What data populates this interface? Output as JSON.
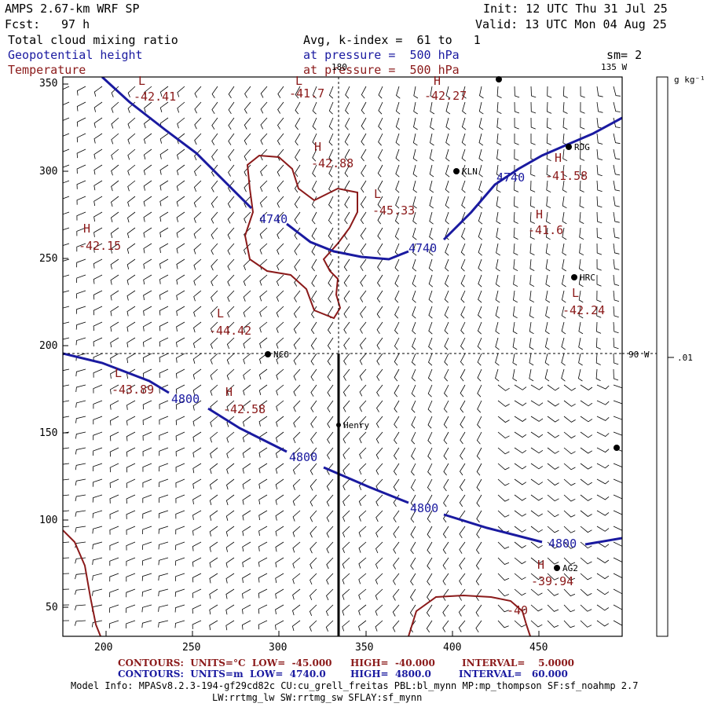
{
  "header": {
    "model": "AMPS 2.67-km WRF SP",
    "fcst_label": "Fcst:",
    "fcst_value": "97 h",
    "init": "Init: 12 UTC Thu 31 Jul 25",
    "valid": "Valid: 13 UTC Mon 04 Aug 25",
    "field1": "Total cloud mixing ratio",
    "field2": "Geopotential height",
    "field3": "Temperature",
    "avg": "Avg, k-index =  61 to   1",
    "pressure1": "at pressure =  500 hPa",
    "pressure2": "at pressure =  500 hPa",
    "smoothing": "sm= 2"
  },
  "colors": {
    "height": "#1a1aa0",
    "temperature": "#8b1a1a",
    "stations": "#000000"
  },
  "axes": {
    "x_ticks": [
      "200",
      "250",
      "300",
      "350",
      "400",
      "450"
    ],
    "y_ticks": [
      "350",
      "300",
      "250",
      "200",
      "150",
      "100",
      "50"
    ],
    "lon_labels": [
      "180",
      "135 W",
      "90 W"
    ]
  },
  "colorbar": {
    "unit": "g kg⁻¹",
    "tick": ".01"
  },
  "stations": [
    {
      "name": "KLN"
    },
    {
      "name": "RDG"
    },
    {
      "name": "HRC"
    },
    {
      "name": "NCO"
    },
    {
      "name": "Henry"
    },
    {
      "name": "AG2"
    }
  ],
  "height_labels": [
    "4740",
    "4740",
    "4740",
    "4800",
    "4800",
    "4800",
    "4800"
  ],
  "temp_extrema": [
    {
      "type": "L",
      "value": "-42.41"
    },
    {
      "type": "L",
      "value": "-41.7"
    },
    {
      "type": "H",
      "value": "-42.27"
    },
    {
      "type": "H",
      "value": "-42.88"
    },
    {
      "type": "L",
      "value": "-45.33"
    },
    {
      "type": "H",
      "value": "-41.58"
    },
    {
      "type": "H",
      "value": "-41.6"
    },
    {
      "type": "H",
      "value": "-42.15"
    },
    {
      "type": "L",
      "value": "-42.24"
    },
    {
      "type": "L",
      "value": "-44.42"
    },
    {
      "type": "L",
      "value": "-43.89"
    },
    {
      "type": "H",
      "value": "-42.58"
    },
    {
      "type": "H",
      "value": "-39.94"
    },
    {
      "type": "",
      "value": "-40"
    }
  ],
  "footer": {
    "line1_left": "CONTOURS:  UNITS=°C  LOW=  -45.000",
    "line1_high": "HIGH=  -40.000",
    "line1_int": "INTERVAL=    5.0000",
    "line2_left": "CONTOURS:  UNITS=m  LOW=  4740.0",
    "line2_high": "HIGH=  4800.0",
    "line2_int": "INTERVAL=   60.000",
    "model_info": "Model Info: MPASv8.2.3-194-gf29cd82c CU:cu_grell_freitas PBL:bl_mynn MP:mp_thompson SF:sf_noahmp 2.7",
    "model_info2": "LW:rrtmg_lw SW:rrtmg_sw SFLAY:sf_mynn"
  }
}
